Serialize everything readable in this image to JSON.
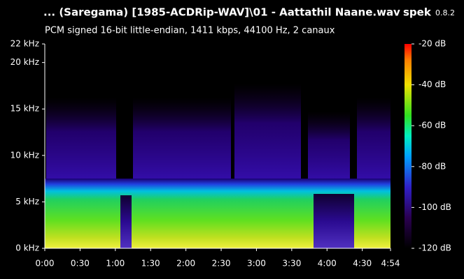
{
  "chart_data": {
    "type": "spectrogram",
    "title": "... (Saregama) [1985-ACDRip-WAV]\\01 - Aattathil Naane.wav",
    "app_name": "spek",
    "app_version": "0.8.2",
    "subtitle": "PCM signed 16-bit little-endian, 1411 kbps, 44100 Hz, 2 canaux",
    "xlim": [
      0,
      294
    ],
    "xticks": [
      {
        "value": 0,
        "label": "0:00"
      },
      {
        "value": 30,
        "label": "0:30"
      },
      {
        "value": 60,
        "label": "1:00"
      },
      {
        "value": 90,
        "label": "1:30"
      },
      {
        "value": 120,
        "label": "2:00"
      },
      {
        "value": 150,
        "label": "2:30"
      },
      {
        "value": 180,
        "label": "3:00"
      },
      {
        "value": 210,
        "label": "3:30"
      },
      {
        "value": 240,
        "label": "4:00"
      },
      {
        "value": 270,
        "label": "4:30"
      },
      {
        "value": 294,
        "label": "4:54"
      }
    ],
    "ylim": [
      0,
      22
    ],
    "yticks": [
      {
        "value": 0,
        "label": "0 kHz"
      },
      {
        "value": 5,
        "label": "5 kHz"
      },
      {
        "value": 10,
        "label": "10 kHz"
      },
      {
        "value": 15,
        "label": "15 kHz"
      },
      {
        "value": 20,
        "label": "20 kHz"
      },
      {
        "value": 22,
        "label": "22 kHz"
      }
    ],
    "colorbar_lim": [
      -120,
      -20
    ],
    "colorbar_ticks": [
      {
        "value": -20,
        "label": "-20 dB"
      },
      {
        "value": -40,
        "label": "-40 dB"
      },
      {
        "value": -60,
        "label": "-60 dB"
      },
      {
        "value": -80,
        "label": "-80 dB"
      },
      {
        "value": -100,
        "label": "-100 dB"
      },
      {
        "value": -120,
        "label": "-120 dB"
      }
    ]
  }
}
